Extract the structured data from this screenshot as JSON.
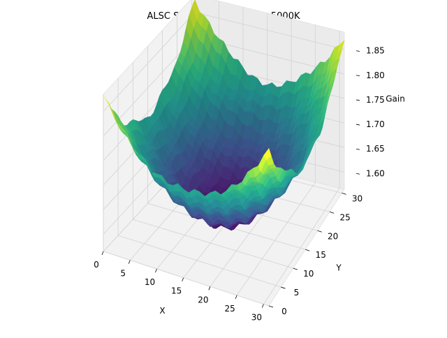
{
  "chart_data": {
    "type": "surface3d",
    "title": "ALSC Shading Table at CT=5000K",
    "xlabel": "X",
    "ylabel": "Y",
    "zlabel": "Gain",
    "x_range": [
      0,
      31
    ],
    "y_range": [
      0,
      31
    ],
    "z_range": [
      1.565,
      1.885
    ],
    "x_ticks": [
      0,
      5,
      10,
      15,
      20,
      25,
      30
    ],
    "y_ticks": [
      0,
      5,
      10,
      15,
      20,
      25,
      30
    ],
    "z_ticks": [
      1.6,
      1.65,
      1.7,
      1.75,
      1.8,
      1.85
    ],
    "z_tick_labels": [
      "1.60",
      "1.65",
      "1.70",
      "1.75",
      "1.80",
      "1.85"
    ],
    "colormap": "viridis",
    "grid": true,
    "surface": {
      "grid_size": 32,
      "center_x": 15.5,
      "center_y": 15.5,
      "min_gain": 1.575,
      "max_gain": 1.878,
      "description_shape": "radial bowl (vignetting correction)"
    },
    "sample_points": [
      {
        "x": 0,
        "y": 0,
        "z": 1.85
      },
      {
        "x": 31,
        "y": 0,
        "z": 1.86
      },
      {
        "x": 0,
        "y": 31,
        "z": 1.85
      },
      {
        "x": 31,
        "y": 31,
        "z": 1.86
      },
      {
        "x": 15,
        "y": 15,
        "z": 1.58
      },
      {
        "x": 0,
        "y": 15,
        "z": 1.7
      },
      {
        "x": 31,
        "y": 15,
        "z": 1.71
      },
      {
        "x": 15,
        "y": 0,
        "z": 1.7
      },
      {
        "x": 15,
        "y": 31,
        "z": 1.7
      }
    ]
  }
}
